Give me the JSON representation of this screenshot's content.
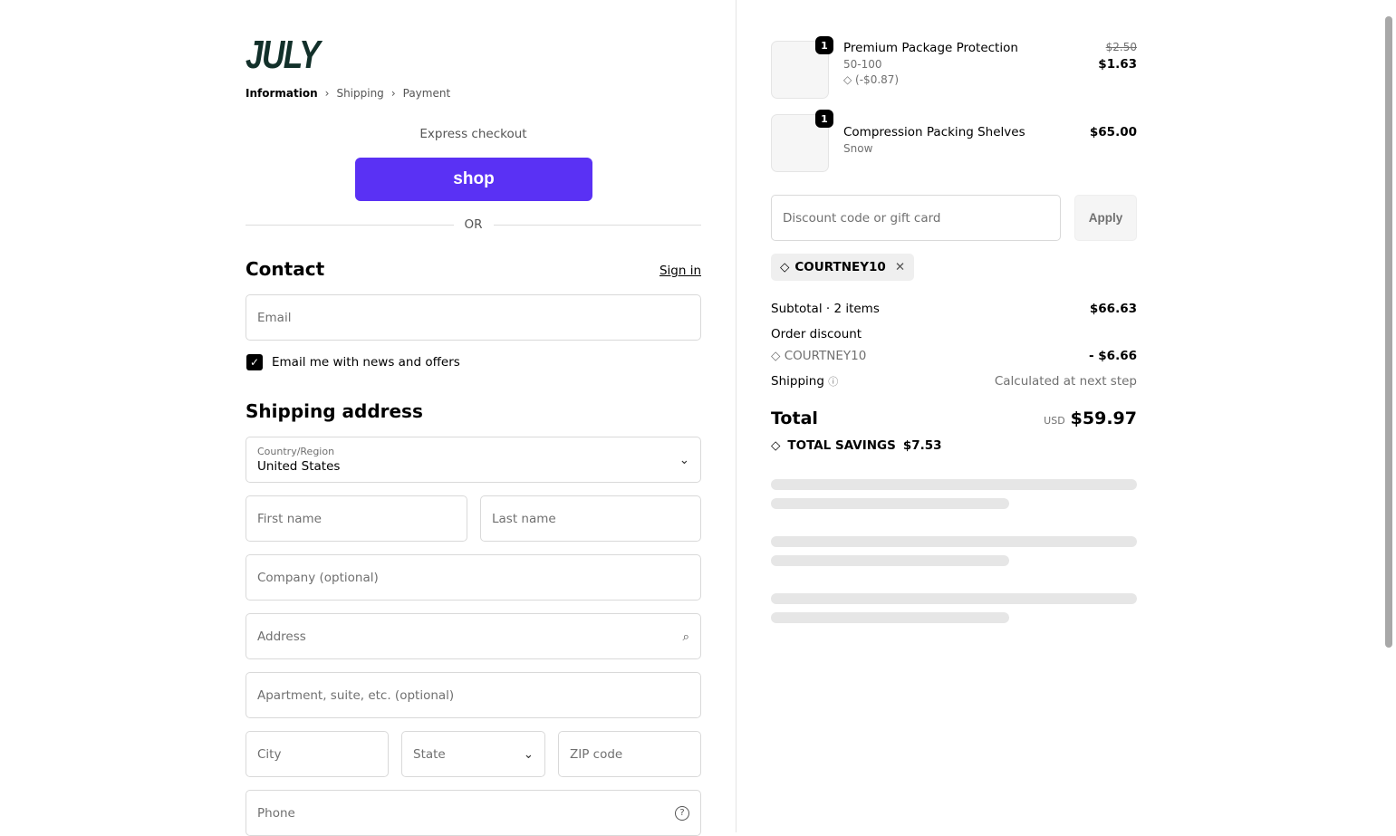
{
  "brand": {
    "logo": "JULY"
  },
  "breadcrumb": [
    "Information",
    "Shipping",
    "Payment"
  ],
  "express": {
    "label": "Express checkout",
    "shop_button": "shop",
    "or": "OR"
  },
  "contact": {
    "title": "Contact",
    "sign_in": "Sign in",
    "email_placeholder": "Email",
    "newsletter_label": "Email me with news and offers",
    "newsletter_checked": true
  },
  "shipping": {
    "title": "Shipping address",
    "country_label": "Country/Region",
    "country_value": "United States",
    "first_name": "First name",
    "last_name": "Last name",
    "company": "Company (optional)",
    "address": "Address",
    "apartment": "Apartment, suite, etc. (optional)",
    "city": "City",
    "state": "State",
    "zip": "ZIP code",
    "phone": "Phone"
  },
  "cart": {
    "items": [
      {
        "name": "Premium Package Protection",
        "variant": "50-100",
        "discount": "(-$0.87)",
        "original_price": "$2.50",
        "price": "$1.63",
        "qty": "1"
      },
      {
        "name": "Compression Packing Shelves",
        "variant": "Snow",
        "price": "$65.00",
        "qty": "1"
      }
    ]
  },
  "discount": {
    "placeholder": "Discount code or gift card",
    "apply": "Apply",
    "applied_code": "COURTNEY10"
  },
  "summary": {
    "subtotal_label": "Subtotal · 2 items",
    "subtotal": "$66.63",
    "order_discount_label": "Order discount",
    "discount_code": "COURTNEY10",
    "discount_value": "- $6.66",
    "shipping_label": "Shipping",
    "shipping_value": "Calculated at next step",
    "total_label": "Total",
    "currency": "USD",
    "total": "$59.97",
    "savings_label": "TOTAL SAVINGS",
    "savings": "$7.53"
  },
  "colors": {
    "shop": "#5a31f4",
    "logo": "#12302a"
  }
}
